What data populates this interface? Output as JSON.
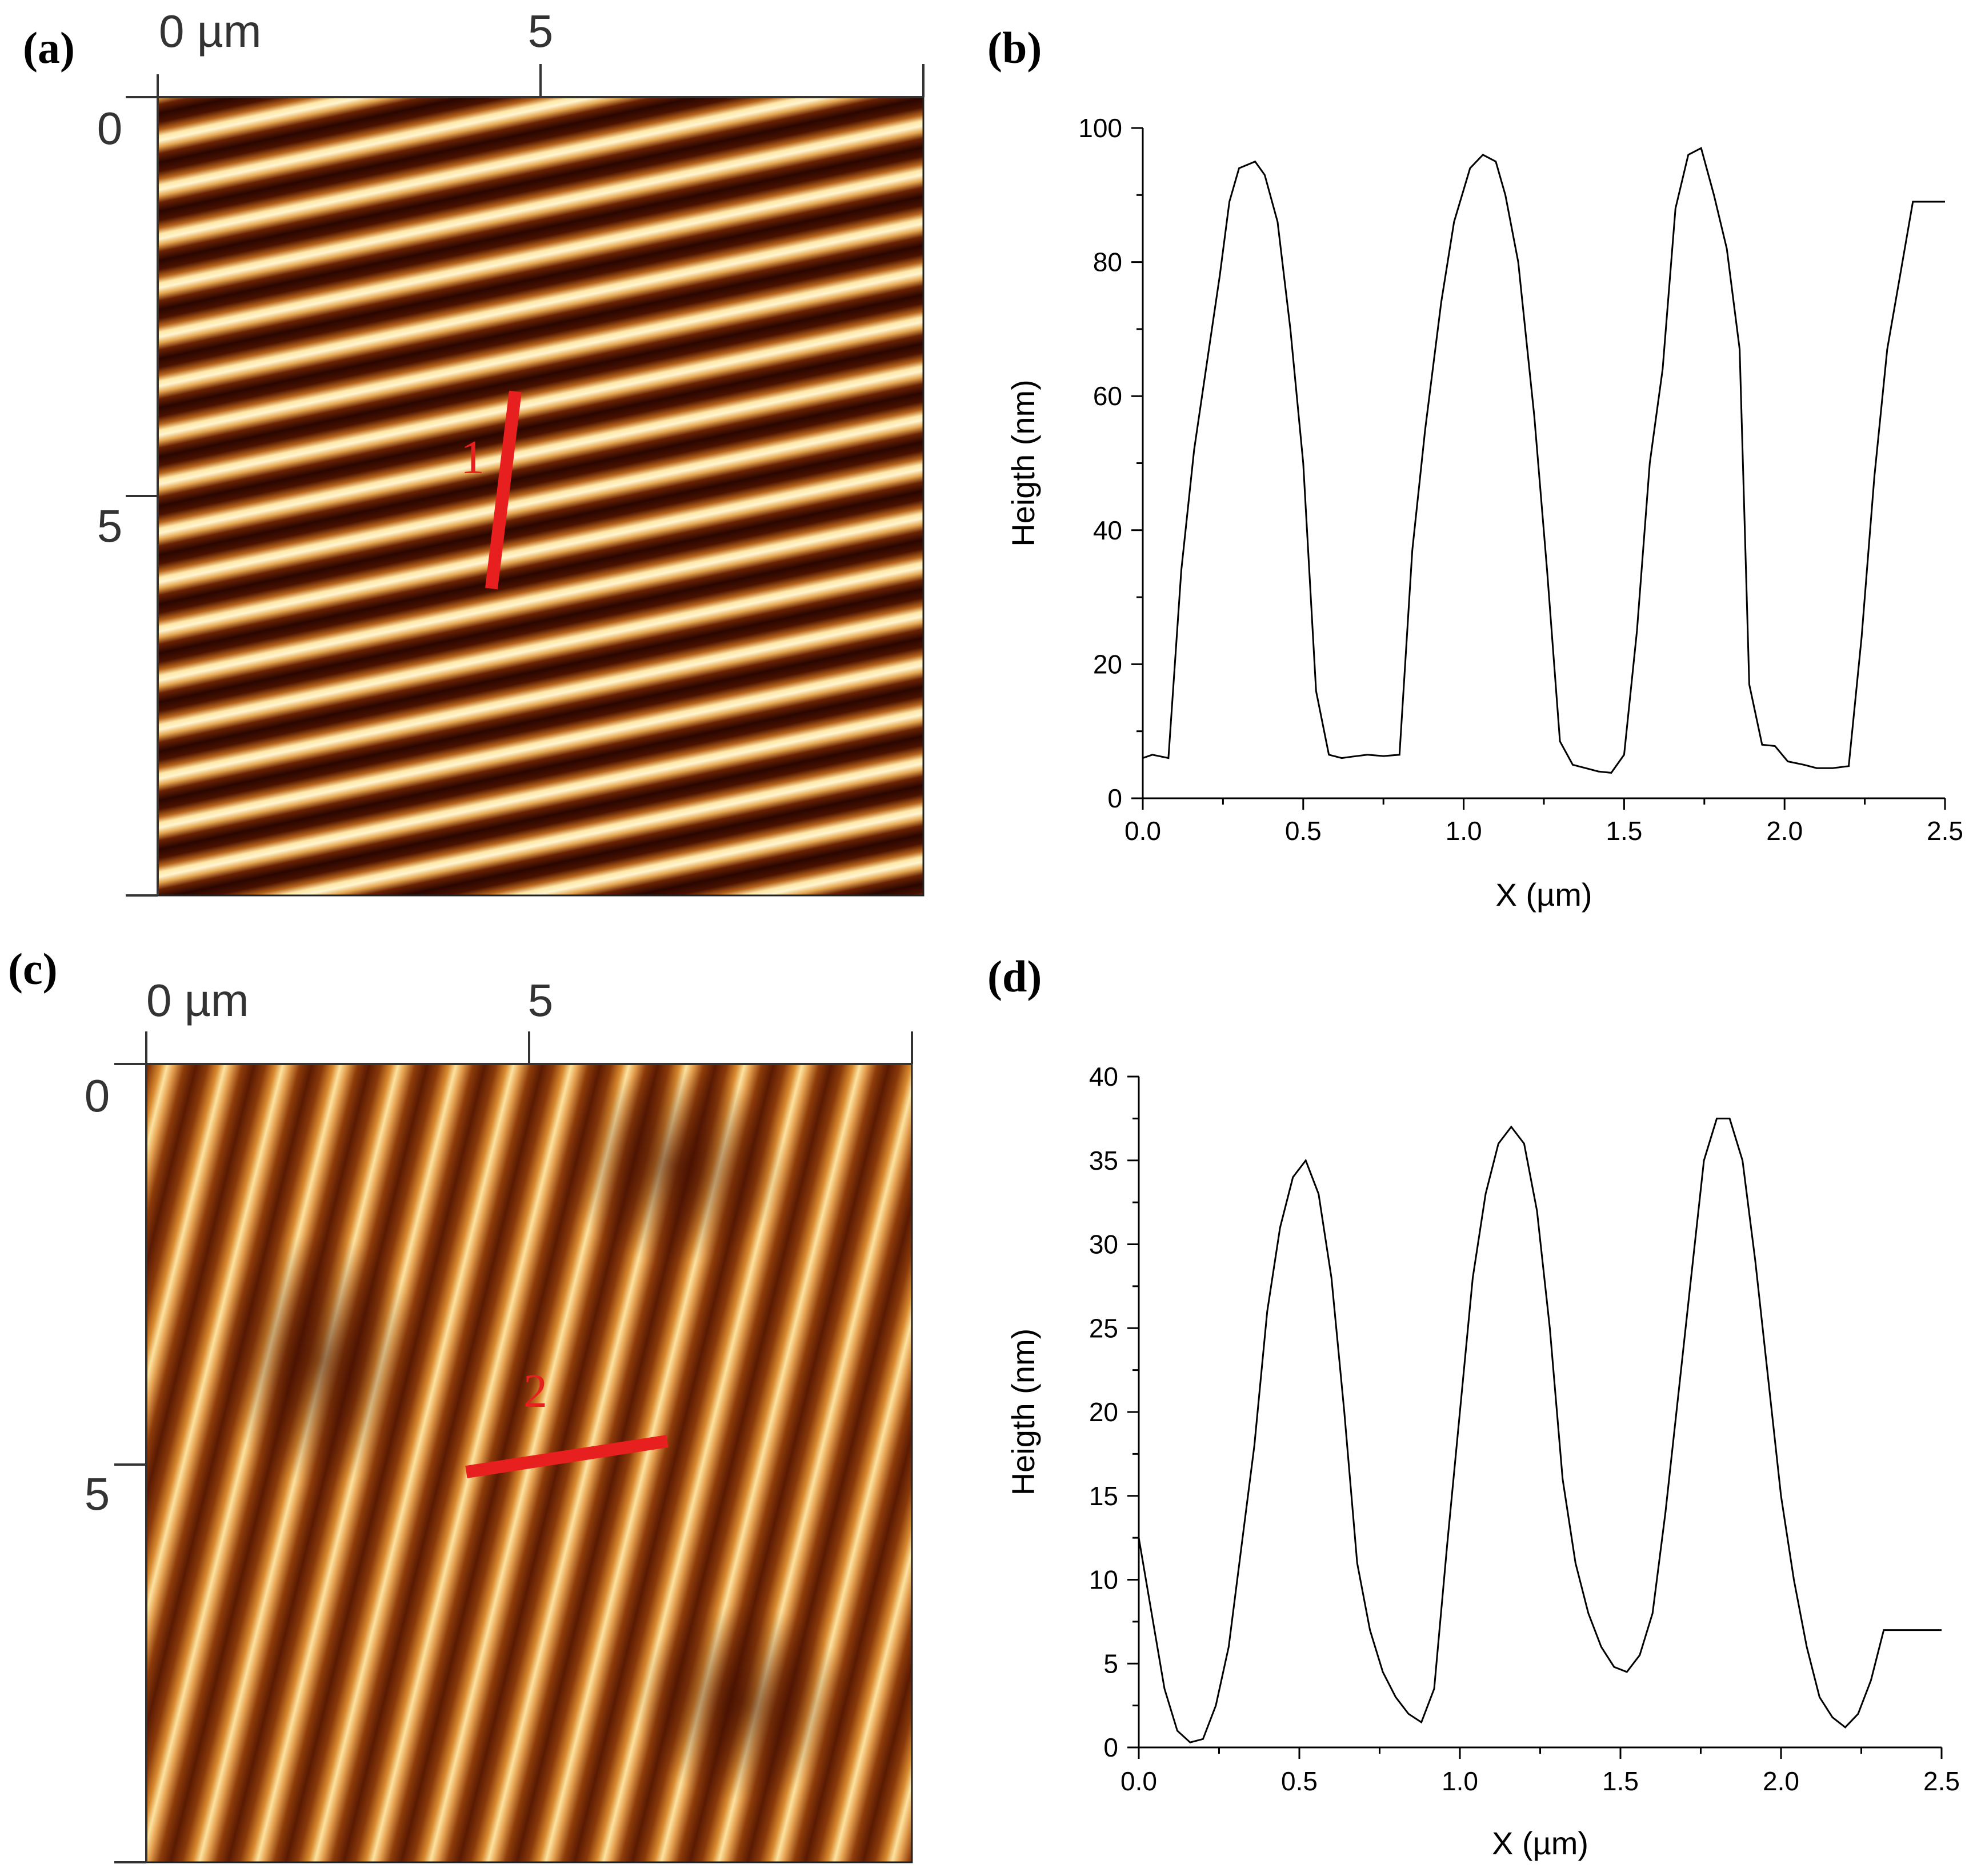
{
  "panels": {
    "a": {
      "label": "(a)",
      "x_unit_label": "0 µm",
      "x_ticks": [
        "0 µm",
        "5"
      ],
      "y_ticks": [
        "0",
        "5"
      ],
      "marker_label": "1",
      "stripe_colors": {
        "dark": "#3a0a00",
        "mid": "#b0601a",
        "light": "#fff2c4"
      },
      "marker_color": "#e81f1f"
    },
    "c": {
      "label": "(c)",
      "x_ticks": [
        "0 µm",
        "5"
      ],
      "y_ticks": [
        "0",
        "5"
      ],
      "marker_label": "2",
      "marker_color": "#e81f1f"
    },
    "b": {
      "label": "(b)"
    },
    "d": {
      "label": "(d)"
    }
  },
  "chart_data": [
    {
      "panel": "b",
      "type": "line",
      "xlabel": "X (µm)",
      "ylabel": "Heigth (nm)",
      "xlim": [
        0,
        2.5
      ],
      "ylim": [
        0,
        100
      ],
      "xticks": [
        "0.0",
        "0.5",
        "1.0",
        "1.5",
        "2.0",
        "2.5"
      ],
      "yticks": [
        "0",
        "20",
        "40",
        "60",
        "80",
        "100"
      ],
      "x": [
        0.0,
        0.03,
        0.08,
        0.12,
        0.16,
        0.2,
        0.24,
        0.27,
        0.3,
        0.35,
        0.38,
        0.42,
        0.46,
        0.5,
        0.54,
        0.58,
        0.62,
        0.65,
        0.7,
        0.75,
        0.8,
        0.84,
        0.88,
        0.93,
        0.97,
        1.02,
        1.06,
        1.1,
        1.13,
        1.17,
        1.22,
        1.26,
        1.3,
        1.34,
        1.38,
        1.42,
        1.46,
        1.5,
        1.54,
        1.58,
        1.62,
        1.66,
        1.7,
        1.74,
        1.78,
        1.82,
        1.86,
        1.89,
        1.93,
        1.97,
        2.01,
        2.06,
        2.1,
        2.15,
        2.2,
        2.24,
        2.28,
        2.32,
        2.36,
        2.4,
        2.45,
        2.5
      ],
      "y": [
        6,
        6.5,
        6,
        34,
        52,
        65,
        78,
        89,
        94,
        95,
        93,
        86,
        70,
        50,
        16,
        6.5,
        6,
        6.2,
        6.5,
        6.3,
        6.5,
        37,
        55,
        74,
        86,
        94,
        96,
        95,
        90,
        80,
        57,
        34,
        8.5,
        5,
        4.5,
        4,
        3.8,
        6.5,
        25,
        50,
        64,
        88,
        96,
        97,
        90,
        82,
        67,
        17,
        8,
        7.8,
        5.5,
        5,
        4.5,
        4.5,
        4.8,
        24,
        48,
        67,
        78,
        89,
        89,
        89
      ],
      "color": "#000000"
    },
    {
      "panel": "d",
      "type": "line",
      "xlabel": "X (µm)",
      "ylabel": "Heigth (nm)",
      "xlim": [
        0,
        2.5
      ],
      "ylim": [
        0,
        40
      ],
      "xticks": [
        "0.0",
        "0.5",
        "1.0",
        "1.5",
        "2.0",
        "2.5"
      ],
      "yticks": [
        "0",
        "5",
        "10",
        "15",
        "20",
        "25",
        "30",
        "35",
        "40"
      ],
      "x": [
        0.0,
        0.04,
        0.08,
        0.12,
        0.16,
        0.2,
        0.24,
        0.28,
        0.32,
        0.36,
        0.4,
        0.44,
        0.48,
        0.52,
        0.56,
        0.6,
        0.64,
        0.68,
        0.72,
        0.76,
        0.8,
        0.84,
        0.88,
        0.92,
        0.96,
        1.0,
        1.04,
        1.08,
        1.12,
        1.16,
        1.2,
        1.24,
        1.28,
        1.32,
        1.36,
        1.4,
        1.44,
        1.48,
        1.52,
        1.56,
        1.6,
        1.64,
        1.68,
        1.72,
        1.76,
        1.8,
        1.84,
        1.88,
        1.92,
        1.96,
        2.0,
        2.04,
        2.08,
        2.12,
        2.16,
        2.2,
        2.24,
        2.28,
        2.32,
        2.36,
        2.4,
        2.44,
        2.48,
        2.5
      ],
      "y": [
        12.5,
        8,
        3.5,
        1,
        0.3,
        0.5,
        2.5,
        6,
        12,
        18,
        26,
        31,
        34,
        35,
        33,
        28,
        20,
        11,
        7,
        4.5,
        3,
        2,
        1.5,
        3.5,
        12,
        20,
        28,
        33,
        36,
        37,
        36,
        32,
        25,
        16,
        11,
        8,
        6,
        4.8,
        4.5,
        5.5,
        8,
        14,
        21,
        28,
        35,
        37.5,
        37.5,
        35,
        29,
        22,
        15,
        10,
        6,
        3,
        1.8,
        1.2,
        2,
        4,
        7,
        7,
        7,
        7,
        7,
        7
      ],
      "color": "#000000"
    }
  ]
}
